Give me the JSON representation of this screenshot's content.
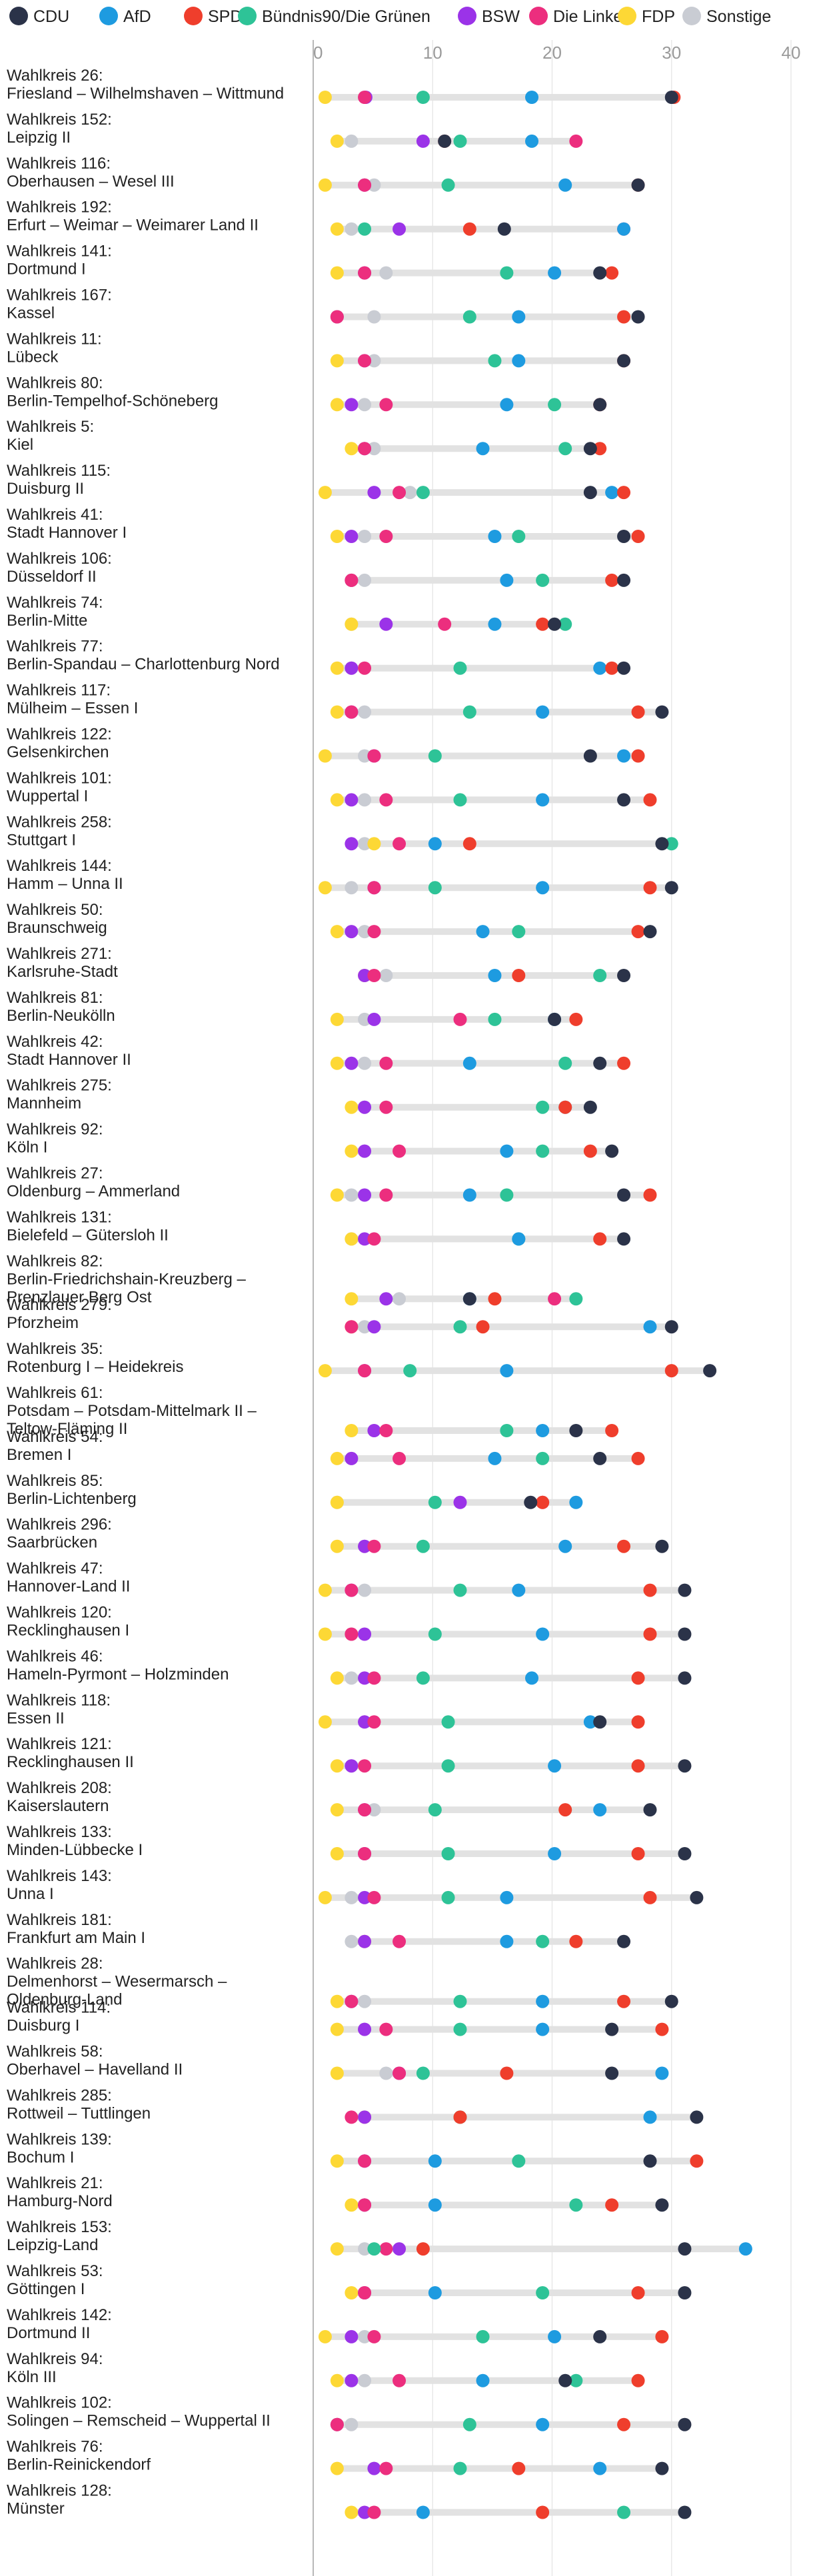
{
  "chart_data": {
    "type": "dot-range",
    "title": "",
    "xlabel": "",
    "ylabel": "",
    "xlim": [
      0,
      40
    ],
    "xticks": [
      "0",
      "10",
      "20",
      "30",
      "40"
    ],
    "grid": true,
    "legend_position": "top",
    "parties": [
      {
        "key": "CDU",
        "name": "CDU",
        "color": "#2b3349"
      },
      {
        "key": "AfD",
        "name": "AfD",
        "color": "#1e9be0"
      },
      {
        "key": "SPD",
        "name": "SPD",
        "color": "#ef3e2c"
      },
      {
        "key": "GRUENE",
        "name": "Bündnis90/Die Grünen",
        "color": "#2ec397"
      },
      {
        "key": "BSW",
        "name": "BSW",
        "color": "#9b33e8"
      },
      {
        "key": "LINKE",
        "name": "Die Linke",
        "color": "#ec2e7e"
      },
      {
        "key": "FDP",
        "name": "FDP",
        "color": "#fdd835"
      },
      {
        "key": "SONST",
        "name": "Sonstige",
        "color": "#c9ccd3"
      }
    ],
    "draw_order": [
      "SONST",
      "FDP",
      "BSW",
      "LINKE",
      "GRUENE",
      "AfD",
      "SPD",
      "CDU"
    ],
    "rows": [
      {
        "label": [
          "Wahlkreis 26:",
          "Friesland – Wilhelmshaven – Wittmund"
        ],
        "v": {
          "CDU": 30,
          "AfD": 18.3,
          "SPD": 30.2,
          "GRUENE": 9.2,
          "BSW": 4.4,
          "LINKE": 4.3,
          "FDP": 1.0,
          "SONST": 4.3
        }
      },
      {
        "label": [
          "Wahlkreis 152:",
          "Leipzig II"
        ],
        "v": {
          "CDU": 11.0,
          "AfD": 18.3,
          "SPD": 11.0,
          "GRUENE": 12.3,
          "BSW": 9.2,
          "LINKE": 22.0,
          "FDP": 2.0,
          "SONST": 3.2
        }
      },
      {
        "label": [
          "Wahlkreis 116:",
          "Oberhausen – Wesel III"
        ],
        "v": {
          "CDU": 27.2,
          "AfD": 21.1,
          "SPD": 27.2,
          "GRUENE": 11.3,
          "BSW": 4.3,
          "LINKE": 4.3,
          "FDP": 1.0,
          "SONST": 5.1
        }
      },
      {
        "label": [
          "Wahlkreis 192:",
          "Erfurt – Weimar – Weimarer Land II"
        ],
        "v": {
          "CDU": 16.0,
          "AfD": 26.0,
          "SPD": 13.1,
          "GRUENE": 4.3,
          "BSW": 7.2,
          "LINKE": 26.0,
          "FDP": 2.0,
          "SONST": 3.2
        }
      },
      {
        "label": [
          "Wahlkreis 141:",
          "Dortmund I"
        ],
        "v": {
          "CDU": 24.0,
          "AfD": 20.2,
          "SPD": 25.0,
          "GRUENE": 16.2,
          "BSW": 4.3,
          "LINKE": 4.3,
          "FDP": 2.0,
          "SONST": 6.1
        }
      },
      {
        "label": [
          "Wahlkreis 167:",
          "Kassel"
        ],
        "v": {
          "CDU": 27.2,
          "AfD": 17.2,
          "SPD": 26.0,
          "GRUENE": 13.1,
          "BSW": 2.0,
          "LINKE": 2.0,
          "FDP": 2.0,
          "SONST": 5.1
        }
      },
      {
        "label": [
          "Wahlkreis 11:",
          "Lübeck"
        ],
        "v": {
          "CDU": 26.0,
          "AfD": 17.2,
          "SPD": 26.0,
          "GRUENE": 15.2,
          "BSW": 4.3,
          "LINKE": 4.3,
          "FDP": 2.0,
          "SONST": 5.1
        }
      },
      {
        "label": [
          "Wahlkreis 80:",
          "Berlin-Tempelhof-Schöneberg"
        ],
        "v": {
          "CDU": 24.0,
          "AfD": 16.2,
          "SPD": 24.0,
          "GRUENE": 20.2,
          "BSW": 3.2,
          "LINKE": 6.1,
          "FDP": 2.0,
          "SONST": 4.3
        }
      },
      {
        "label": [
          "Wahlkreis 5:",
          "Kiel"
        ],
        "v": {
          "CDU": 23.2,
          "AfD": 14.2,
          "SPD": 24.0,
          "GRUENE": 21.1,
          "BSW": 4.3,
          "LINKE": 4.3,
          "FDP": 3.2,
          "SONST": 5.1
        }
      },
      {
        "label": [
          "Wahlkreis 115:",
          "Duisburg II"
        ],
        "v": {
          "CDU": 23.2,
          "AfD": 25.0,
          "SPD": 26.0,
          "GRUENE": 9.2,
          "BSW": 5.1,
          "LINKE": 7.2,
          "FDP": 1.0,
          "SONST": 8.1
        }
      },
      {
        "label": [
          "Wahlkreis 41:",
          "Stadt Hannover I"
        ],
        "v": {
          "CDU": 26.0,
          "AfD": 15.2,
          "SPD": 27.2,
          "GRUENE": 17.2,
          "BSW": 3.2,
          "LINKE": 6.1,
          "FDP": 2.0,
          "SONST": 4.3
        }
      },
      {
        "label": [
          "Wahlkreis 106:",
          "Düsseldorf II"
        ],
        "v": {
          "CDU": 26.0,
          "AfD": 16.2,
          "SPD": 25.0,
          "GRUENE": 19.2,
          "BSW": 3.2,
          "LINKE": 3.2,
          "FDP": 3.2,
          "SONST": 4.3
        }
      },
      {
        "label": [
          "Wahlkreis 74:",
          "Berlin-Mitte"
        ],
        "v": {
          "CDU": 20.2,
          "AfD": 15.2,
          "SPD": 19.2,
          "GRUENE": 21.1,
          "BSW": 6.1,
          "LINKE": 11.0,
          "FDP": 3.2,
          "SONST": 3.2
        }
      },
      {
        "label": [
          "Wahlkreis 77:",
          "Berlin-Spandau – Charlottenburg Nord"
        ],
        "v": {
          "CDU": 26.0,
          "AfD": 24.0,
          "SPD": 25.0,
          "GRUENE": 12.3,
          "BSW": 3.2,
          "LINKE": 4.3,
          "FDP": 2.0,
          "SONST": 3.2
        }
      },
      {
        "label": [
          "Wahlkreis 117:",
          "Mülheim – Essen I"
        ],
        "v": {
          "CDU": 29.2,
          "AfD": 19.2,
          "SPD": 27.2,
          "GRUENE": 13.1,
          "BSW": 3.2,
          "LINKE": 3.2,
          "FDP": 2.0,
          "SONST": 4.3
        }
      },
      {
        "label": [
          "Wahlkreis 122:",
          "Gelsenkirchen"
        ],
        "v": {
          "CDU": 23.2,
          "AfD": 26.0,
          "SPD": 27.2,
          "GRUENE": 10.2,
          "BSW": 5.1,
          "LINKE": 5.1,
          "FDP": 1.0,
          "SONST": 4.3
        }
      },
      {
        "label": [
          "Wahlkreis 101:",
          "Wuppertal I"
        ],
        "v": {
          "CDU": 26.0,
          "AfD": 19.2,
          "SPD": 28.2,
          "GRUENE": 12.3,
          "BSW": 3.2,
          "LINKE": 6.1,
          "FDP": 2.0,
          "SONST": 4.3
        }
      },
      {
        "label": [
          "Wahlkreis 258:",
          "Stuttgart I"
        ],
        "v": {
          "CDU": 29.2,
          "AfD": 10.2,
          "SPD": 13.1,
          "GRUENE": 30.0,
          "BSW": 3.2,
          "LINKE": 7.2,
          "FDP": 5.1,
          "SONST": 4.3
        }
      },
      {
        "label": [
          "Wahlkreis 144:",
          "Hamm – Unna II"
        ],
        "v": {
          "CDU": 30.0,
          "AfD": 19.2,
          "SPD": 28.2,
          "GRUENE": 10.2,
          "BSW": 5.1,
          "LINKE": 5.1,
          "FDP": 1.0,
          "SONST": 3.2
        }
      },
      {
        "label": [
          "Wahlkreis 50:",
          "Braunschweig"
        ],
        "v": {
          "CDU": 28.2,
          "AfD": 14.2,
          "SPD": 27.2,
          "GRUENE": 17.2,
          "BSW": 3.2,
          "LINKE": 5.1,
          "FDP": 2.0,
          "SONST": 4.3
        }
      },
      {
        "label": [
          "Wahlkreis 271:",
          "Karlsruhe-Stadt"
        ],
        "v": {
          "CDU": 26.0,
          "AfD": 15.2,
          "SPD": 17.2,
          "GRUENE": 24.0,
          "BSW": 4.3,
          "LINKE": 5.1,
          "FDP": 4.3,
          "SONST": 6.1
        }
      },
      {
        "label": [
          "Wahlkreis 81:",
          "Berlin-Neukölln"
        ],
        "v": {
          "CDU": 20.2,
          "AfD": 20.2,
          "SPD": 22.0,
          "GRUENE": 15.2,
          "BSW": 5.1,
          "LINKE": 12.3,
          "FDP": 2.0,
          "SONST": 4.3
        }
      },
      {
        "label": [
          "Wahlkreis 42:",
          "Stadt Hannover II"
        ],
        "v": {
          "CDU": 24.0,
          "AfD": 13.1,
          "SPD": 26.0,
          "GRUENE": 21.1,
          "BSW": 3.2,
          "LINKE": 6.1,
          "FDP": 2.0,
          "SONST": 4.3
        }
      },
      {
        "label": [
          "Wahlkreis 275:",
          "Mannheim"
        ],
        "v": {
          "CDU": 23.2,
          "AfD": 21.1,
          "SPD": 21.1,
          "GRUENE": 19.2,
          "BSW": 4.3,
          "LINKE": 6.1,
          "FDP": 3.2,
          "SONST": 4.3
        }
      },
      {
        "label": [
          "Wahlkreis 92:",
          "Köln I"
        ],
        "v": {
          "CDU": 25.0,
          "AfD": 16.2,
          "SPD": 23.2,
          "GRUENE": 19.2,
          "BSW": 4.3,
          "LINKE": 7.2,
          "FDP": 3.2,
          "SONST": 4.3
        }
      },
      {
        "label": [
          "Wahlkreis 27:",
          "Oldenburg – Ammerland"
        ],
        "v": {
          "CDU": 26.0,
          "AfD": 13.1,
          "SPD": 28.2,
          "GRUENE": 16.2,
          "BSW": 4.3,
          "LINKE": 6.1,
          "FDP": 2.0,
          "SONST": 3.2
        }
      },
      {
        "label": [
          "Wahlkreis 131:",
          "Bielefeld – Gütersloh II"
        ],
        "v": {
          "CDU": 26.0,
          "AfD": 17.2,
          "SPD": 24.0,
          "GRUENE": 17.2,
          "BSW": 4.3,
          "LINKE": 5.1,
          "FDP": 3.2,
          "SONST": 3.2
        }
      },
      {
        "label": [
          "Wahlkreis 82:",
          "Berlin-Friedrichshain-Kreuzberg –",
          "Prenzlauer Berg Ost"
        ],
        "v": {
          "CDU": 13.1,
          "AfD": 13.1,
          "SPD": 15.2,
          "GRUENE": 22.0,
          "BSW": 6.1,
          "LINKE": 20.2,
          "FDP": 3.2,
          "SONST": 7.2
        }
      },
      {
        "label": [
          "Wahlkreis 279:",
          "Pforzheim"
        ],
        "v": {
          "CDU": 30.0,
          "AfD": 28.2,
          "SPD": 14.2,
          "GRUENE": 12.3,
          "BSW": 5.1,
          "LINKE": 3.2,
          "FDP": 3.2,
          "SONST": 4.3
        }
      },
      {
        "label": [
          "Wahlkreis 35:",
          "Rotenburg I – Heidekreis"
        ],
        "v": {
          "CDU": 33.2,
          "AfD": 16.2,
          "SPD": 30.0,
          "GRUENE": 8.1,
          "BSW": 4.3,
          "LINKE": 4.3,
          "FDP": 1.0,
          "SONST": 4.3
        }
      },
      {
        "label": [
          "Wahlkreis 61:",
          "Potsdam – Potsdam-Mittelmark II –",
          "Teltow-Fläming II"
        ],
        "v": {
          "CDU": 22.0,
          "AfD": 19.2,
          "SPD": 25.0,
          "GRUENE": 16.2,
          "BSW": 5.1,
          "LINKE": 6.1,
          "FDP": 3.2,
          "SONST": 5.1
        }
      },
      {
        "label": [
          "Wahlkreis 54:",
          "Bremen I"
        ],
        "v": {
          "CDU": 24.0,
          "AfD": 15.2,
          "SPD": 27.2,
          "GRUENE": 19.2,
          "BSW": 3.2,
          "LINKE": 7.2,
          "FDP": 2.0,
          "SONST": 3.2
        }
      },
      {
        "label": [
          "Wahlkreis 85:",
          "Berlin-Lichtenberg"
        ],
        "v": {
          "CDU": 18.2,
          "AfD": 22.0,
          "SPD": 19.2,
          "GRUENE": 10.2,
          "BSW": 12.3,
          "LINKE": 19.2,
          "FDP": 2.0,
          "SONST": 2.0
        }
      },
      {
        "label": [
          "Wahlkreis 296:",
          "Saarbrücken"
        ],
        "v": {
          "CDU": 29.2,
          "AfD": 21.1,
          "SPD": 26.0,
          "GRUENE": 9.2,
          "BSW": 4.3,
          "LINKE": 5.1,
          "FDP": 2.0,
          "SONST": 4.3
        }
      },
      {
        "label": [
          "Wahlkreis 47:",
          "Hannover-Land II"
        ],
        "v": {
          "CDU": 31.1,
          "AfD": 17.2,
          "SPD": 28.2,
          "GRUENE": 12.3,
          "BSW": 3.2,
          "LINKE": 3.2,
          "FDP": 1.0,
          "SONST": 4.3
        }
      },
      {
        "label": [
          "Wahlkreis 120:",
          "Recklinghausen I"
        ],
        "v": {
          "CDU": 31.1,
          "AfD": 19.2,
          "SPD": 28.2,
          "GRUENE": 10.2,
          "BSW": 4.3,
          "LINKE": 3.2,
          "FDP": 1.0,
          "SONST": 3.2
        }
      },
      {
        "label": [
          "Wahlkreis 46:",
          "Hameln-Pyrmont – Holzminden"
        ],
        "v": {
          "CDU": 31.1,
          "AfD": 18.3,
          "SPD": 27.2,
          "GRUENE": 9.2,
          "BSW": 4.3,
          "LINKE": 5.1,
          "FDP": 2.0,
          "SONST": 3.2
        }
      },
      {
        "label": [
          "Wahlkreis 118:",
          "Essen II"
        ],
        "v": {
          "CDU": 24.0,
          "AfD": 23.2,
          "SPD": 27.2,
          "GRUENE": 11.3,
          "BSW": 4.3,
          "LINKE": 5.1,
          "FDP": 1.0,
          "SONST": 4.3
        }
      },
      {
        "label": [
          "Wahlkreis 121:",
          "Recklinghausen II"
        ],
        "v": {
          "CDU": 31.1,
          "AfD": 20.2,
          "SPD": 27.2,
          "GRUENE": 11.3,
          "BSW": 3.2,
          "LINKE": 4.3,
          "FDP": 2.0,
          "SONST": 3.2
        }
      },
      {
        "label": [
          "Wahlkreis 208:",
          "Kaiserslautern"
        ],
        "v": {
          "CDU": 28.2,
          "AfD": 24.0,
          "SPD": 21.1,
          "GRUENE": 10.2,
          "BSW": 4.3,
          "LINKE": 4.3,
          "FDP": 2.0,
          "SONST": 5.1
        }
      },
      {
        "label": [
          "Wahlkreis 133:",
          "Minden-Lübbecke I"
        ],
        "v": {
          "CDU": 31.1,
          "AfD": 20.2,
          "SPD": 27.2,
          "GRUENE": 11.3,
          "BSW": 4.3,
          "LINKE": 4.3,
          "FDP": 2.0,
          "SONST": 4.3
        }
      },
      {
        "label": [
          "Wahlkreis 143:",
          "Unna I"
        ],
        "v": {
          "CDU": 32.1,
          "AfD": 16.2,
          "SPD": 28.2,
          "GRUENE": 11.3,
          "BSW": 4.3,
          "LINKE": 5.1,
          "FDP": 1.0,
          "SONST": 3.2
        }
      },
      {
        "label": [
          "Wahlkreis 181:",
          "Frankfurt am Main I"
        ],
        "v": {
          "CDU": 26.0,
          "AfD": 16.2,
          "SPD": 22.0,
          "GRUENE": 19.2,
          "BSW": 4.3,
          "LINKE": 7.2,
          "FDP": 4.3,
          "SONST": 3.2
        }
      },
      {
        "label": [
          "Wahlkreis 28:",
          "Delmenhorst – Wesermarsch –",
          "Oldenburg-Land"
        ],
        "v": {
          "CDU": 30.0,
          "AfD": 19.2,
          "SPD": 26.0,
          "GRUENE": 12.3,
          "BSW": 3.2,
          "LINKE": 3.2,
          "FDP": 2.0,
          "SONST": 4.3
        }
      },
      {
        "label": [
          "Wahlkreis 114:",
          "Duisburg I"
        ],
        "v": {
          "CDU": 25.0,
          "AfD": 19.2,
          "SPD": 29.2,
          "GRUENE": 12.3,
          "BSW": 4.3,
          "LINKE": 6.1,
          "FDP": 2.0,
          "SONST": 4.3
        }
      },
      {
        "label": [
          "Wahlkreis 58:",
          "Oberhavel – Havelland II"
        ],
        "v": {
          "CDU": 25.0,
          "AfD": 29.2,
          "SPD": 16.2,
          "GRUENE": 9.2,
          "BSW": 7.2,
          "LINKE": 7.2,
          "FDP": 2.0,
          "SONST": 6.1
        }
      },
      {
        "label": [
          "Wahlkreis 285:",
          "Rottweil – Tuttlingen"
        ],
        "v": {
          "CDU": 32.1,
          "AfD": 28.2,
          "SPD": 12.3,
          "GRUENE": 12.3,
          "BSW": 4.3,
          "LINKE": 3.2,
          "FDP": 4.3,
          "SONST": 4.3
        }
      },
      {
        "label": [
          "Wahlkreis 139:",
          "Bochum I"
        ],
        "v": {
          "CDU": 28.2,
          "AfD": 10.2,
          "SPD": 32.1,
          "GRUENE": 17.2,
          "BSW": 4.3,
          "LINKE": 4.3,
          "FDP": 2.0,
          "SONST": 4.3
        }
      },
      {
        "label": [
          "Wahlkreis 21:",
          "Hamburg-Nord"
        ],
        "v": {
          "CDU": 29.2,
          "AfD": 10.2,
          "SPD": 25.0,
          "GRUENE": 22.0,
          "BSW": 4.3,
          "LINKE": 4.3,
          "FDP": 3.2,
          "SONST": 4.3
        }
      },
      {
        "label": [
          "Wahlkreis 153:",
          "Leipzig-Land"
        ],
        "v": {
          "CDU": 31.1,
          "AfD": 36.2,
          "SPD": 9.2,
          "GRUENE": 5.1,
          "BSW": 7.2,
          "LINKE": 6.1,
          "FDP": 2.0,
          "SONST": 4.3
        }
      },
      {
        "label": [
          "Wahlkreis 53:",
          "Göttingen I"
        ],
        "v": {
          "CDU": 31.1,
          "AfD": 10.2,
          "SPD": 27.2,
          "GRUENE": 19.2,
          "BSW": 4.3,
          "LINKE": 4.3,
          "FDP": 3.2,
          "SONST": 4.3
        }
      },
      {
        "label": [
          "Wahlkreis 142:",
          "Dortmund II"
        ],
        "v": {
          "CDU": 24.0,
          "AfD": 20.2,
          "SPD": 29.2,
          "GRUENE": 14.2,
          "BSW": 3.2,
          "LINKE": 5.1,
          "FDP": 1.0,
          "SONST": 4.3
        }
      },
      {
        "label": [
          "Wahlkreis 94:",
          "Köln III"
        ],
        "v": {
          "CDU": 21.1,
          "AfD": 14.2,
          "SPD": 27.2,
          "GRUENE": 22.0,
          "BSW": 3.2,
          "LINKE": 7.2,
          "FDP": 2.0,
          "SONST": 4.3
        }
      },
      {
        "label": [
          "Wahlkreis 102:",
          "Solingen – Remscheid – Wuppertal II"
        ],
        "v": {
          "CDU": 31.1,
          "AfD": 19.2,
          "SPD": 26.0,
          "GRUENE": 13.1,
          "BSW": 2.0,
          "LINKE": 2.0,
          "FDP": 2.0,
          "SONST": 3.2
        }
      },
      {
        "label": [
          "Wahlkreis 76:",
          "Berlin-Reinickendorf"
        ],
        "v": {
          "CDU": 29.2,
          "AfD": 24.0,
          "SPD": 17.2,
          "GRUENE": 12.3,
          "BSW": 5.1,
          "LINKE": 6.1,
          "FDP": 2.0,
          "SONST": 5.1
        }
      },
      {
        "label": [
          "Wahlkreis 128:",
          "Münster"
        ],
        "v": {
          "CDU": 31.1,
          "AfD": 9.2,
          "SPD": 19.2,
          "GRUENE": 26.0,
          "BSW": 4.3,
          "LINKE": 5.1,
          "FDP": 3.2,
          "SONST": 5.1
        }
      }
    ]
  }
}
